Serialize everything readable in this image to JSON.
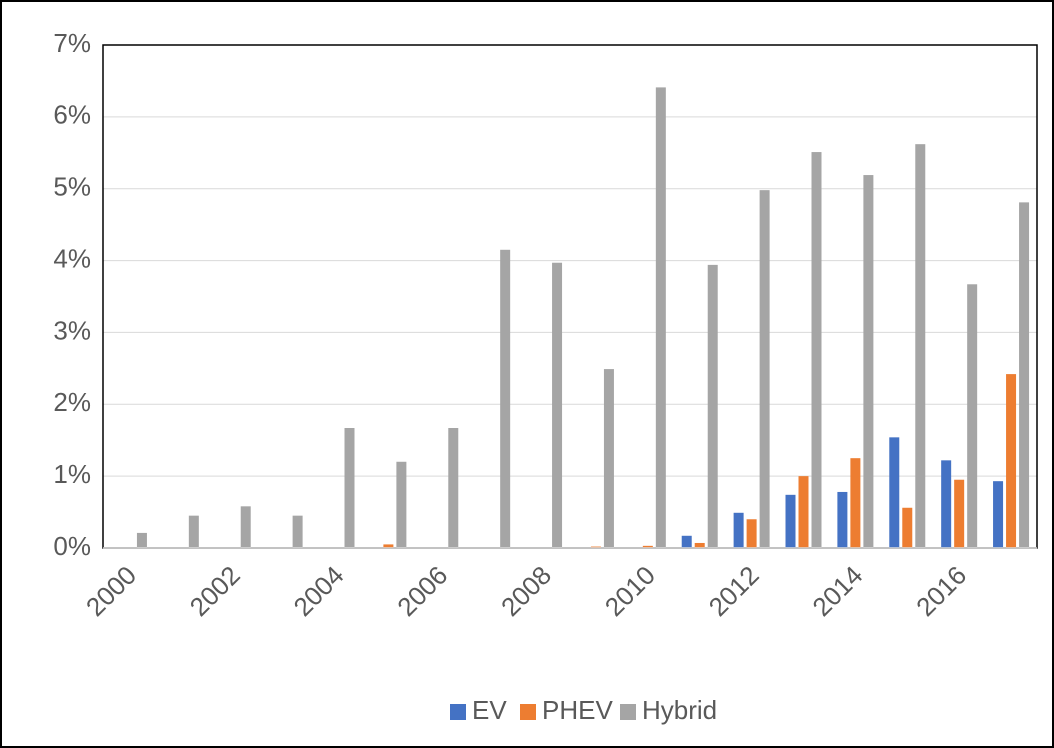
{
  "chart_data": {
    "type": "bar",
    "categories": [
      "2000",
      null,
      "2002",
      null,
      "2004",
      null,
      "2006",
      null,
      "2008",
      null,
      "2010",
      null,
      "2012",
      null,
      "2014",
      null,
      "2016",
      null
    ],
    "series": [
      {
        "name": "EV",
        "color": "#4472c4",
        "values": [
          0,
          0,
          0,
          0,
          0,
          0,
          0,
          0,
          0,
          0,
          0,
          0.17,
          0.49,
          0.74,
          0.78,
          1.54,
          1.22,
          0.93
        ]
      },
      {
        "name": "PHEV",
        "color": "#ed7d31",
        "values": [
          0,
          0,
          0,
          0,
          0,
          0.05,
          0,
          0,
          0,
          0.02,
          0.03,
          0.07,
          0.4,
          1.0,
          1.25,
          0.56,
          0.95,
          2.42
        ]
      },
      {
        "name": "Hybrid",
        "color": "#a5a5a5",
        "values": [
          0.21,
          0.45,
          0.58,
          0.45,
          1.67,
          1.2,
          1.67,
          4.15,
          3.97,
          2.49,
          6.41,
          3.94,
          4.98,
          5.51,
          5.19,
          5.62,
          3.67,
          4.81
        ]
      }
    ],
    "ylim": [
      0,
      7
    ],
    "yticks": [
      {
        "value": 0,
        "label": "0%"
      },
      {
        "value": 1,
        "label": "1%"
      },
      {
        "value": 2,
        "label": "2%"
      },
      {
        "value": 3,
        "label": "3%"
      },
      {
        "value": 4,
        "label": "4%"
      },
      {
        "value": 5,
        "label": "5%"
      },
      {
        "value": 6,
        "label": "6%"
      },
      {
        "value": 7,
        "label": "7%"
      }
    ],
    "grid": true,
    "legend": "bottom"
  }
}
